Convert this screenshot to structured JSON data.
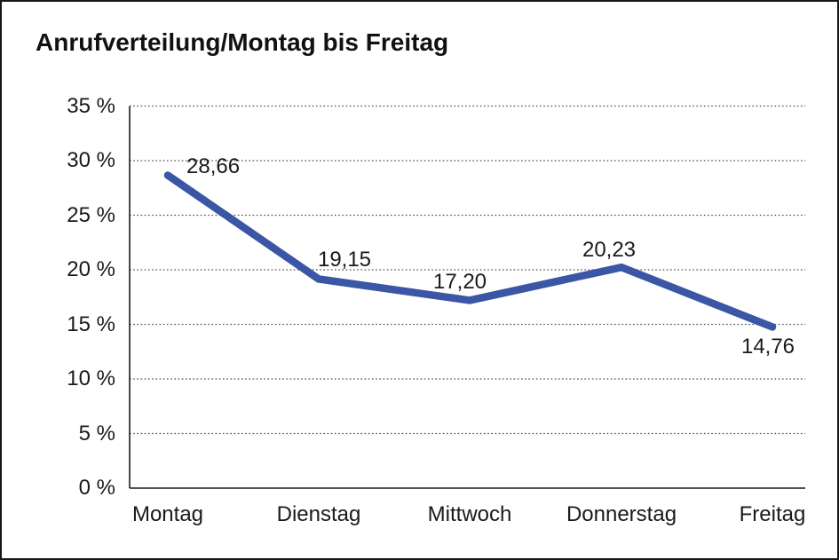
{
  "title": "Anrufverteilung/Montag bis Freitag",
  "chart_data": {
    "type": "line",
    "title": "Anrufverteilung/Montag bis Freitag",
    "categories": [
      "Montag",
      "Dienstag",
      "Mittwoch",
      "Donnerstag",
      "Freitag"
    ],
    "values": [
      28.66,
      19.15,
      17.2,
      20.23,
      14.76
    ],
    "value_labels": [
      "28,66",
      "19,15",
      "17,20",
      "20,23",
      "14,76"
    ],
    "xlabel": "",
    "ylabel": "",
    "ylim": [
      0,
      35
    ],
    "ytick_step": 5,
    "ytick_labels": [
      "0 %",
      "5 %",
      "10 %",
      "15 %",
      "20 %",
      "25 %",
      "30 %",
      "35 %"
    ],
    "grid": "horizontal-dotted",
    "legend": "none",
    "unit": "%",
    "colors": {
      "line": "#3A56A5",
      "text": "#1a1a1a",
      "axis": "#1a1a1a",
      "grid": "#4d4d4d",
      "background": "#ffffff",
      "frame_border": "#161616"
    }
  }
}
